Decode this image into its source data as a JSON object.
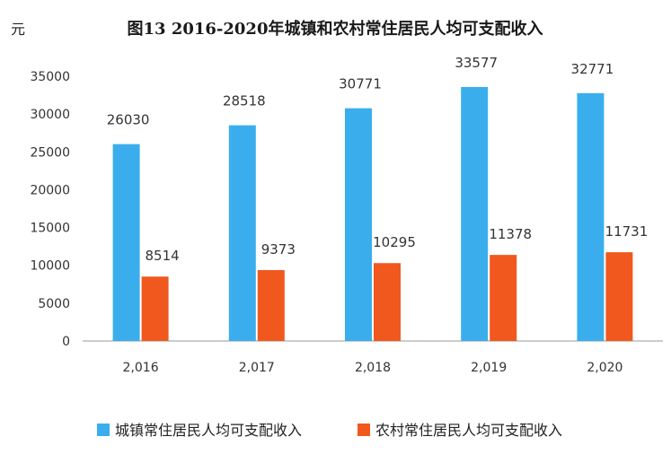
{
  "chart_data": {
    "type": "bar",
    "title": "图13      2016-2020年城镇和农村常住居民人均可支配收入",
    "unit_label": "元",
    "xlabel": "",
    "ylabel": "",
    "categories": [
      "2,016",
      "2,017",
      "2,018",
      "2,019",
      "2,020"
    ],
    "series": [
      {
        "name": "城镇常住居民人均可支配收入",
        "color": "#3aaeec",
        "values": [
          26030,
          28518,
          30771,
          33577,
          32771
        ]
      },
      {
        "name": "农村常住居民人均可支配收入",
        "color": "#f0581e",
        "values": [
          8514,
          9373,
          10295,
          11378,
          11731
        ]
      }
    ],
    "ylim": [
      0,
      35000
    ],
    "yticks": [
      0,
      5000,
      10000,
      15000,
      20000,
      25000,
      30000,
      35000
    ],
    "grid": false,
    "legend_position": "bottom"
  }
}
